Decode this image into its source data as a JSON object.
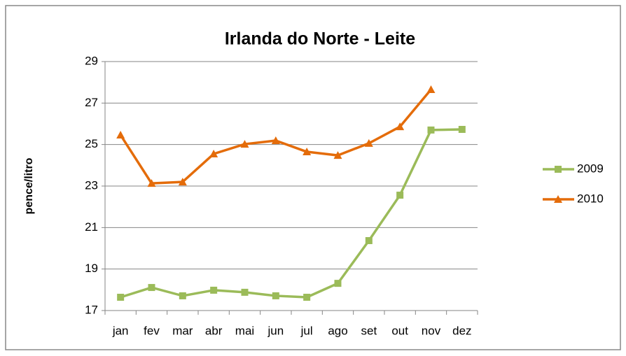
{
  "chart_data": {
    "type": "line",
    "title": "Irlanda do Norte - Leite",
    "y_label": "pence/litro",
    "categories": [
      "jan",
      "fev",
      "mar",
      "abr",
      "mai",
      "jun",
      "jul",
      "ago",
      "set",
      "out",
      "nov",
      "dez"
    ],
    "series": [
      {
        "name": "2009",
        "color": "#9bbb59",
        "marker": "square",
        "values": [
          17.64,
          18.11,
          17.71,
          17.98,
          17.88,
          17.71,
          17.64,
          18.31,
          20.37,
          22.56,
          25.7,
          25.73
        ]
      },
      {
        "name": "2010",
        "color": "#e46c0a",
        "marker": "triangle",
        "values": [
          25.46,
          23.13,
          23.2,
          24.55,
          25.02,
          25.19,
          24.65,
          24.48,
          25.06,
          25.86,
          27.65,
          null
        ]
      }
    ],
    "ylim": [
      17,
      29
    ],
    "yticks": [
      17,
      19,
      21,
      23,
      25,
      27,
      29
    ],
    "grid": true,
    "legend": "right"
  }
}
